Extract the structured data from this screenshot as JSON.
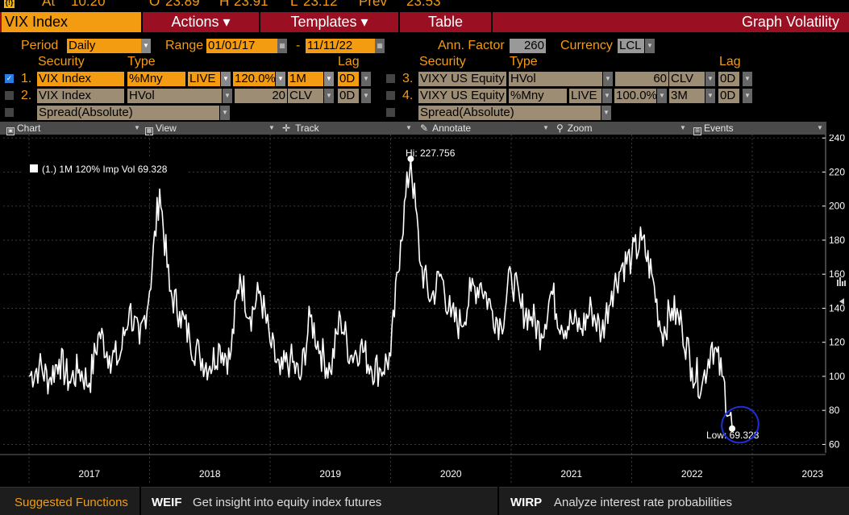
{
  "quote": {
    "badge": "{!}",
    "at_label": "At",
    "at_time": "10:20",
    "o_label": "O",
    "o_value": "23.89",
    "h_label": "H",
    "h_value": "23.91",
    "l_label": "L",
    "l_value": "23.12",
    "prev_label": "Prev",
    "prev_value": "23.53"
  },
  "titlebar": {
    "ticker": "VIX Index",
    "actions": "Actions ▾",
    "templates": "Templates ▾",
    "table": "Table",
    "title": "Graph Volatility"
  },
  "settings": {
    "period_label": "Period",
    "period_value": "Daily",
    "range_label": "Range",
    "range_start": "01/01/17",
    "range_sep": "-",
    "range_end": "11/11/22",
    "ann_factor_label": "Ann. Factor",
    "ann_factor_value": "260",
    "currency_label": "Currency",
    "currency_value": "LCL"
  },
  "headers": {
    "security": "Security",
    "type": "Type",
    "lag": "Lag"
  },
  "rows_left": [
    {
      "num": "1.",
      "security": "VIX Index",
      "type": "%Mny",
      "source": "LIVE",
      "pct": "120.0%",
      "tenor": "1M",
      "lag": "0D"
    },
    {
      "num": "2.",
      "security": "VIX Index",
      "type": "HVol",
      "window": "20",
      "field": "CLV",
      "lag": "0D"
    },
    {
      "spread": "Spread(Absolute)"
    }
  ],
  "rows_right": [
    {
      "num": "3.",
      "security": "VIXY US Equity",
      "type": "HVol",
      "window": "60",
      "field": "CLV",
      "lag": "0D"
    },
    {
      "num": "4.",
      "security": "VIXY US Equity",
      "type": "%Mny",
      "source": "LIVE",
      "pct": "100.0%",
      "tenor": "3M",
      "lag": "0D"
    },
    {
      "spread": "Spread(Absolute)"
    }
  ],
  "toolbar": {
    "chart": "Chart",
    "view": "View",
    "track": "Track",
    "annotate": "Annotate",
    "zoom": "Zoom",
    "events": "Events"
  },
  "legend": {
    "text": "(1.) 1M 120% Imp Vol 69.328"
  },
  "annotations": {
    "hi": "Hi: 227.756",
    "low": "Low: 69.328"
  },
  "colors": {
    "accent": "#f39c12",
    "title_bar": "#9b0f23",
    "series": "#ffffff",
    "circle": "#1d2fd6"
  },
  "chart_data": {
    "type": "line",
    "series": [
      {
        "name": "(1.) 1M 120% Imp Vol"
      }
    ],
    "x_ticks": [
      "2017",
      "2018",
      "2019",
      "2020",
      "2021",
      "2022",
      "2023"
    ],
    "y_ticks": [
      60,
      80,
      100,
      120,
      140,
      160,
      180,
      200,
      220,
      240
    ],
    "ylim": [
      55,
      242
    ],
    "grid": true,
    "legend_position": "top-left",
    "points": [
      [
        "2017-01",
        100
      ],
      [
        "2017-02",
        106
      ],
      [
        "2017-03",
        98
      ],
      [
        "2017-04",
        110
      ],
      [
        "2017-05",
        97
      ],
      [
        "2017-06",
        104
      ],
      [
        "2017-07",
        96
      ],
      [
        "2017-08",
        126
      ],
      [
        "2017-09",
        112
      ],
      [
        "2017-10",
        110
      ],
      [
        "2017-11",
        140
      ],
      [
        "2017-12",
        119
      ],
      [
        "2018-01",
        150
      ],
      [
        "2018-02",
        210
      ],
      [
        "2018-03",
        150
      ],
      [
        "2018-04",
        138
      ],
      [
        "2018-05",
        122
      ],
      [
        "2018-06",
        112
      ],
      [
        "2018-07",
        106
      ],
      [
        "2018-08",
        118
      ],
      [
        "2018-09",
        110
      ],
      [
        "2018-10",
        160
      ],
      [
        "2018-11",
        135
      ],
      [
        "2018-12",
        150
      ],
      [
        "2019-01",
        120
      ],
      [
        "2019-02",
        101
      ],
      [
        "2019-03",
        110
      ],
      [
        "2019-04",
        98
      ],
      [
        "2019-05",
        135
      ],
      [
        "2019-06",
        115
      ],
      [
        "2019-07",
        103
      ],
      [
        "2019-08",
        135
      ],
      [
        "2019-09",
        112
      ],
      [
        "2019-10",
        118
      ],
      [
        "2019-11",
        106
      ],
      [
        "2019-12",
        104
      ],
      [
        "2020-01",
        112
      ],
      [
        "2020-02",
        180
      ],
      [
        "2020-03",
        227.756
      ],
      [
        "2020-04",
        165
      ],
      [
        "2020-05",
        145
      ],
      [
        "2020-06",
        160
      ],
      [
        "2020-07",
        135
      ],
      [
        "2020-08",
        130
      ],
      [
        "2020-09",
        150
      ],
      [
        "2020-10",
        155
      ],
      [
        "2020-11",
        140
      ],
      [
        "2020-12",
        130
      ],
      [
        "2021-01",
        160
      ],
      [
        "2021-02",
        140
      ],
      [
        "2021-03",
        135
      ],
      [
        "2021-04",
        125
      ],
      [
        "2021-05",
        150
      ],
      [
        "2021-06",
        130
      ],
      [
        "2021-07",
        132
      ],
      [
        "2021-08",
        128
      ],
      [
        "2021-09",
        140
      ],
      [
        "2021-10",
        125
      ],
      [
        "2021-11",
        150
      ],
      [
        "2021-12",
        165
      ],
      [
        "2022-01",
        170
      ],
      [
        "2022-02",
        180
      ],
      [
        "2022-03",
        160
      ],
      [
        "2022-04",
        125
      ],
      [
        "2022-05",
        140
      ],
      [
        "2022-06",
        130
      ],
      [
        "2022-07",
        105
      ],
      [
        "2022-08",
        95
      ],
      [
        "2022-09",
        120
      ],
      [
        "2022-10",
        100
      ],
      [
        "2022-11",
        69.328
      ]
    ]
  },
  "bottom": {
    "suggested": "Suggested Functions",
    "fn1_code": "WEIF",
    "fn1_desc": "Get insight into equity index futures",
    "fn2_code": "WIRP",
    "fn2_desc": "Analyze interest rate probabilities"
  }
}
